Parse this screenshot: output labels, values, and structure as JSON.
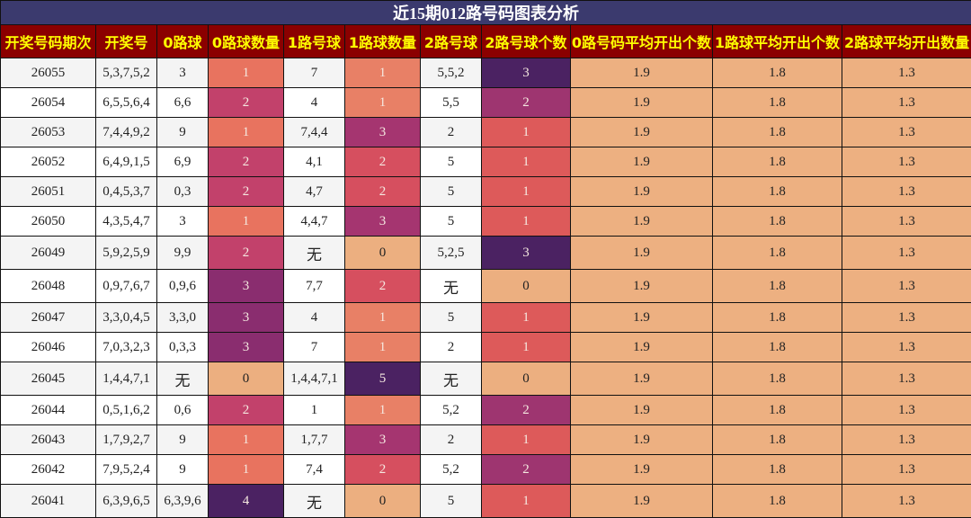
{
  "chart_data": {
    "type": "table",
    "title": "近15期012路号码图表分析",
    "columns": [
      "开奖号码期次",
      "开奖号",
      "0路球",
      "0路球数量",
      "1路号球",
      "1路球数量",
      "2路号球",
      "2路号球个数",
      "0路号码平均开出个数",
      "1路球平均开出个数",
      "2路球平均开出数量"
    ],
    "rows": [
      [
        "26055",
        "5,3,7,5,2",
        "3",
        "1",
        "7",
        "1",
        "5,5,2",
        "3",
        "1.9",
        "1.8",
        "1.3"
      ],
      [
        "26054",
        "6,5,5,6,4",
        "6,6",
        "2",
        "4",
        "1",
        "5,5",
        "2",
        "1.9",
        "1.8",
        "1.3"
      ],
      [
        "26053",
        "7,4,4,9,2",
        "9",
        "1",
        "7,4,4",
        "3",
        "2",
        "1",
        "1.9",
        "1.8",
        "1.3"
      ],
      [
        "26052",
        "6,4,9,1,5",
        "6,9",
        "2",
        "4,1",
        "2",
        "5",
        "1",
        "1.9",
        "1.8",
        "1.3"
      ],
      [
        "26051",
        "0,4,5,3,7",
        "0,3",
        "2",
        "4,7",
        "2",
        "5",
        "1",
        "1.9",
        "1.8",
        "1.3"
      ],
      [
        "26050",
        "4,3,5,4,7",
        "3",
        "1",
        "4,4,7",
        "3",
        "5",
        "1",
        "1.9",
        "1.8",
        "1.3"
      ],
      [
        "26049",
        "5,9,2,5,9",
        "9,9",
        "2",
        "无",
        "0",
        "5,2,5",
        "3",
        "1.9",
        "1.8",
        "1.3"
      ],
      [
        "26048",
        "0,9,7,6,7",
        "0,9,6",
        "3",
        "7,7",
        "2",
        "无",
        "0",
        "1.9",
        "1.8",
        "1.3"
      ],
      [
        "26047",
        "3,3,0,4,5",
        "3,3,0",
        "3",
        "4",
        "1",
        "5",
        "1",
        "1.9",
        "1.8",
        "1.3"
      ],
      [
        "26046",
        "7,0,3,2,3",
        "0,3,3",
        "3",
        "7",
        "1",
        "2",
        "1",
        "1.9",
        "1.8",
        "1.3"
      ],
      [
        "26045",
        "1,4,4,7,1",
        "无",
        "0",
        "1,4,4,7,1",
        "5",
        "无",
        "0",
        "1.9",
        "1.8",
        "1.3"
      ],
      [
        "26044",
        "0,5,1,6,2",
        "0,6",
        "2",
        "1",
        "1",
        "5,2",
        "2",
        "1.9",
        "1.8",
        "1.3"
      ],
      [
        "26043",
        "1,7,9,2,7",
        "9",
        "1",
        "1,7,7",
        "3",
        "2",
        "1",
        "1.9",
        "1.8",
        "1.3"
      ],
      [
        "26042",
        "7,9,5,2,4",
        "9",
        "1",
        "7,4",
        "2",
        "5,2",
        "2",
        "1.9",
        "1.8",
        "1.3"
      ],
      [
        "26041",
        "6,3,9,6,5",
        "6,3,9,6",
        "4",
        "无",
        "0",
        "5",
        "1",
        "1.9",
        "1.8",
        "1.3"
      ]
    ],
    "heat_colors": {
      "3": {
        "0": "#ecaf80",
        "1": "#e8735f",
        "2": "#c2416b",
        "3": "#8a2d6f",
        "4": "#4b2262"
      },
      "5": {
        "0": "#ecaf80",
        "1": "#e88066",
        "2": "#d64f5f",
        "3": "#a53570",
        "5": "#4b2262"
      },
      "7": {
        "0": "#ecaf80",
        "1": "#dd5a5a",
        "2": "#9e3570",
        "3": "#4b2262"
      },
      "avg": "#edb081"
    },
    "header_bg": "#8b0000",
    "header_text": "#ffff00",
    "title_bg": "#3b3a6e"
  }
}
